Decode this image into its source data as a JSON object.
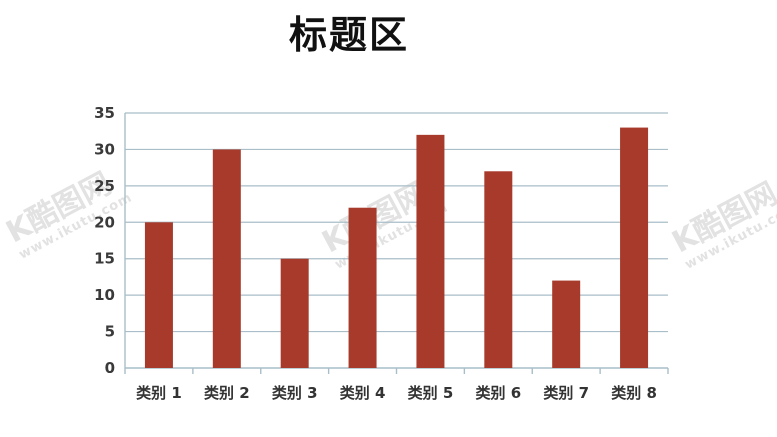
{
  "watermark": {
    "logo": "K酷图网",
    "url": "www.ikutu.com"
  },
  "chart_data": {
    "type": "bar",
    "title": "标题区",
    "categories": [
      "类别 1",
      "类别 2",
      "类别 3",
      "类别 4",
      "类别 5",
      "类别 6",
      "类别 7",
      "类别 8"
    ],
    "values": [
      20,
      30,
      15,
      22,
      32,
      27,
      12,
      33
    ],
    "ylim": [
      0,
      35
    ],
    "yticks": [
      0,
      5,
      10,
      15,
      20,
      25,
      30,
      35
    ],
    "grid": true,
    "bar_color": "#a83a2c",
    "grid_color": "#a9bec8"
  }
}
